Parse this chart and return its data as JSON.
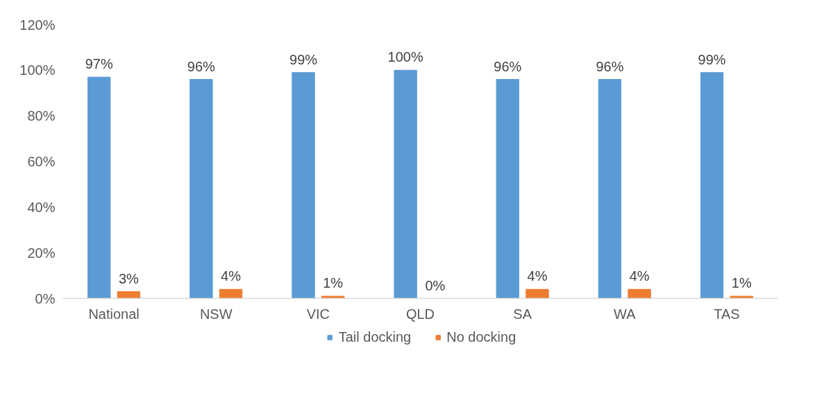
{
  "chart_data": {
    "type": "bar",
    "categories": [
      "National",
      "NSW",
      "VIC",
      "QLD",
      "SA",
      "WA",
      "TAS"
    ],
    "series": [
      {
        "name": "Tail docking",
        "color": "#5b9bd5",
        "values": [
          97,
          96,
          99,
          100,
          96,
          96,
          99
        ],
        "value_labels": [
          "97%",
          "96%",
          "99%",
          "100%",
          "96%",
          "96%",
          "99%"
        ]
      },
      {
        "name": "No docking",
        "color": "#ed7d31",
        "values": [
          3,
          4,
          1,
          0,
          4,
          4,
          1
        ],
        "value_labels": [
          "3%",
          "4%",
          "1%",
          "0%",
          "4%",
          "4%",
          "1%"
        ]
      }
    ],
    "ylim": [
      0,
      120
    ],
    "yticks": [
      {
        "value": 0,
        "label": "0%"
      },
      {
        "value": 20,
        "label": "20%"
      },
      {
        "value": 40,
        "label": "40%"
      },
      {
        "value": 60,
        "label": "60%"
      },
      {
        "value": 80,
        "label": "80%"
      },
      {
        "value": 100,
        "label": "100%"
      },
      {
        "value": 120,
        "label": "120%"
      }
    ],
    "grid": false,
    "legend": "bottom"
  }
}
